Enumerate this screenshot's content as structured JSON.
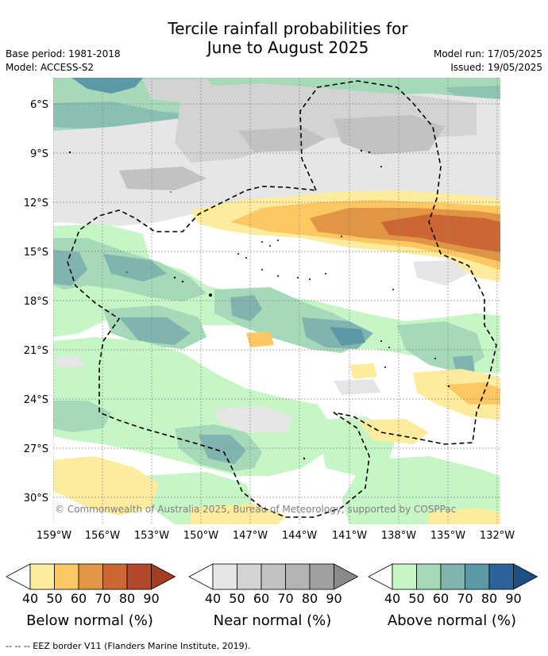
{
  "header": {
    "title_line1": "Tercile rainfall probabilities for",
    "title_line2": "June to August 2025",
    "base_period": "Base period: 1981-2018",
    "model": "Model: ACCESS-S2",
    "model_run": "Model run: 17/05/2025",
    "issued": "Issued: 19/05/2025"
  },
  "map": {
    "lat_labels": [
      "6°S",
      "9°S",
      "12°S",
      "15°S",
      "18°S",
      "21°S",
      "24°S",
      "27°S",
      "30°S"
    ],
    "lon_labels": [
      "159°W",
      "156°W",
      "153°W",
      "150°W",
      "147°W",
      "144°W",
      "141°W",
      "138°W",
      "135°W",
      "132°W"
    ],
    "copyright": "© Commonwealth of Australia 2025, Bureau of Meteorology, supported by COSPPac"
  },
  "colorbars": {
    "ticks": [
      "40",
      "50",
      "60",
      "70",
      "80",
      "90"
    ],
    "below": {
      "title": "Below normal (%)",
      "colors": [
        "#fdeb9e",
        "#fdc862",
        "#e19645",
        "#cc6633",
        "#b3482a",
        "#a33d22"
      ]
    },
    "near": {
      "title": "Near normal (%)",
      "colors": [
        "#e6e6e6",
        "#d3d3d3",
        "#c2c2c2",
        "#b3b3b3",
        "#a0a0a0",
        "#8a8a8a"
      ]
    },
    "above": {
      "title": "Above normal (%)",
      "colors": [
        "#c6f5c6",
        "#a6d9b8",
        "#7fb5ae",
        "#5b99a6",
        "#2e6399",
        "#1b4f86"
      ]
    }
  },
  "footer": {
    "legend_text": "--  --  -- EEZ border V11 (Flanders Marine Institute, 2019)."
  }
}
